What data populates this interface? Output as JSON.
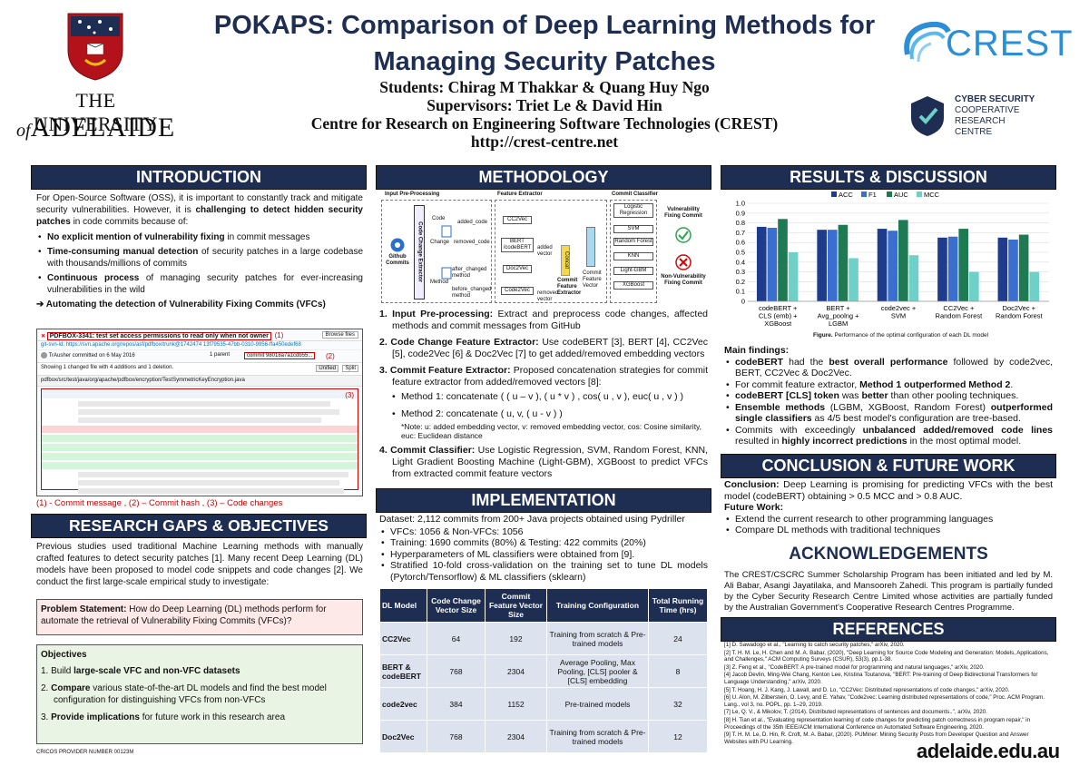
{
  "header": {
    "title_line1": "POKAPS: Comparison of Deep Learning Methods for",
    "title_line2": "Managing Security Patches",
    "students": "Students: Chirag M Thakkar & Quang Huy Ngo",
    "supervisors": "Supervisors: Triet Le & David Hin",
    "centre": "Centre for Research on Engineering Software Technologies (CREST)",
    "url": "http://crest-centre.net",
    "uni_line1": "THE UNIVERSITY",
    "uni_line2_of": "of",
    "uni_line2": "ADELAIDE",
    "crest_logo": "CREST",
    "cyber_line1": "CYBER SECURITY",
    "cyber_line2": "COOPERATIVE",
    "cyber_line3": "RESEARCH",
    "cyber_line4": "CENTRE"
  },
  "intro": {
    "title": "INTRODUCTION",
    "p1_a": "For Open-Source Software (OSS), it is important to constantly track and mitigate security vulnerabilities. However, it is ",
    "p1_b": "challenging to detect hidden security patches",
    "p1_c": " in code commits because of:",
    "bullets": [
      {
        "b": "No explicit mention of vulnerability fixing",
        "t": " in commit messages"
      },
      {
        "b": "Time-consuming manual detection",
        "t": " of security patches in a large codebase with thousands/millions of commits"
      },
      {
        "b": "Continuous process",
        "t": " of managing security patches for ever-increasing vulnerabilities in the wild"
      }
    ],
    "arrow_line": "Automating the detection of Vulnerability Fixing Commits (VFCs)",
    "commit_title": "PDFBOX-3341: test set access permissions to read only when not owner",
    "commit_caption": "(1) - Commit message , (2) – Commit hash , (3) – Code changes",
    "label1": "(1)",
    "label2": "(2)",
    "label3": "(3)",
    "browse": "Browse files",
    "author": "TrAusher committed on 6 May 2016",
    "parent": "1 parent",
    "commit_hash": "commit 98018a7a1cdb55...",
    "showing": "Showing 1 changed file with 4 additions and 1 deletion.",
    "unified": "Unified",
    "split": "Split",
    "file_path": "pdfbox/src/test/java/org/apache/pdfbox/encryption/TestSymmetricKeyEncryption.java"
  },
  "gaps": {
    "title": "RESEARCH GAPS & OBJECTIVES",
    "p1": "Previous studies used traditional Machine Learning methods with manually crafted features to detect security patches [1]. Many recent Deep Learning (DL) models have been proposed to model code snippets and code changes [2]. We conduct the first large-scale empirical study to investigate:",
    "problem_label": "Problem Statement:",
    "problem_text": " How do Deep Learning (DL) methods perform for automate the retrieval of Vulnerability Fixing Commits (VFCs)?",
    "objectives_title": "Objectives",
    "obj": [
      {
        "n": "1.",
        "a": "Build ",
        "b": "large-scale VFC and non-VFC datasets",
        "c": ""
      },
      {
        "n": "2.",
        "a": "",
        "b": "Compare",
        "c": " various state-of-the-art DL models and find the best model configuration for distinguishing VFCs from non-VFCs"
      },
      {
        "n": "3.",
        "a": "",
        "b": "Provide implications",
        "c": " for future work in this research area"
      }
    ],
    "cricos": "CRICOS PROVIDER NUMBER 00123M"
  },
  "methodology": {
    "title": "METHODOLOGY",
    "diagram": {
      "h1": "Input Pre-Processing",
      "h2": "Feature Extractor",
      "h3": "Commit Classifier",
      "github": "Github Commits",
      "extractor": "Code Change Extractor",
      "code": "Code",
      "method": "Method",
      "added_code": "added_code",
      "removed_code": "removed_code",
      "change": "Change",
      "after_method": "after_changed method",
      "before_method": "before_changed method",
      "cc2vec": "CC2Vec",
      "bert": "BERT /codeBERT",
      "doc2vec": "Doc2Vec",
      "code2vec": "Code2Vec",
      "added_vector": "added vector",
      "removed_vector": "removed vector",
      "concat": "Concat",
      "cfe": "Commit Feature Extractor",
      "cfv": "Commit Feature Vector",
      "lr": "Logistic Regression",
      "svm": "SVM",
      "rf": "Random Forest",
      "knn": "KNN",
      "lgbm": "Light-GBM",
      "xgb": "XGBoost",
      "vfc": "Vulnerability Fixing Commit",
      "nvfc": "Non-Vulnerability Fixing Commit"
    },
    "steps": [
      {
        "n": "1.",
        "b": "Input Pre-processing:",
        "t": " Extract and preprocess code changes, affected methods and commit messages from GitHub"
      },
      {
        "n": "2.",
        "b": "Code Change Feature Extractor:",
        "t": " Use codeBERT [3], BERT [4], CC2Vec [5], code2Vec [6] & Doc2Vec [7] to get added/removed embedding vectors"
      },
      {
        "n": "3.",
        "b": "Commit Feature Extractor:",
        "t": " Proposed concatenation strategies for commit feature extractor from added/removed vectors [8]:"
      },
      {
        "n": "4.",
        "b": "Commit Classifier:",
        "t": " Use Logistic Regression, SVM, Random Forest, KNN, Light Gradient Boosting Machine (Light-GBM), XGBoost to predict VFCs from extracted commit feature vectors"
      }
    ],
    "m1": "Method 1: concatenate ( ( u – v ), ( u * v ) , cos( u , v ), euc( u , v ) )",
    "m2": "Method 2: concatenate ( u, v, ( u - v ) )",
    "note": "*Note: u: added embedding vector, v: removed embedding vector, cos: Cosine similarity, euc: Euclidean distance"
  },
  "implementation": {
    "title": "IMPLEMENTATION",
    "dataset": "Dataset: 2,112 commits from 200+ Java projects obtained using Pydriller",
    "bullets": [
      "VFCs: 1056 & Non-VFCs: 1056",
      "Training: 1690 commits (80%) & Testing: 422 commits (20%)",
      "Hyperparameters of ML classifiers were obtained from [9].",
      "Stratified 10-fold cross-validation on the training set to tune DL models (Pytorch/Tensorflow) & ML classifiers (sklearn)"
    ],
    "headers": [
      "DL Model",
      "Code Change Vector Size",
      "Commit Feature Vector Size",
      "Training Configuration",
      "Total Running Time (hrs)"
    ],
    "rows": [
      [
        "CC2Vec",
        "64",
        "192",
        "Training from scratch & Pre-trained models",
        "24"
      ],
      [
        "BERT & codeBERT",
        "768",
        "2304",
        "Average Pooling, Max Pooling, [CLS] pooler & [CLS] embedding",
        "8"
      ],
      [
        "code2vec",
        "384",
        "1152",
        "Pre-trained models",
        "32"
      ],
      [
        "Doc2Vec",
        "768",
        "2304",
        "Training from scratch & Pre-trained models",
        "12"
      ]
    ]
  },
  "results": {
    "title": "RESULTS & DISCUSSION",
    "caption_b": "Figure.",
    "caption": " Performance of the optimal configuration of each DL model",
    "findings_title": "Main findings:",
    "findings": [
      {
        "a": "",
        "b": "codeBERT",
        "c": " had the ",
        "d": "best overall performance",
        "e": " followed by code2vec, BERT, CC2Vec & Doc2Vec."
      },
      {
        "a": "For commit feature extractor, ",
        "b": "Method 1 outperformed Method 2",
        "c": ".",
        "d": "",
        "e": ""
      },
      {
        "a": "",
        "b": "codeBERT [CLS] token",
        "c": " was ",
        "d": "better",
        "e": " than other pooling techniques."
      },
      {
        "a": "",
        "b": "Ensemble methods",
        "c": " (LGBM, XGBoost, Random Forest) ",
        "d": "outperformed single classifiers",
        "e": " as 4/5 best model's configuration are tree-based."
      },
      {
        "a": "Commits with exceedingly ",
        "b": "unbalanced added/removed code lines",
        "c": " resulted in ",
        "d": "highly incorrect predictions",
        "e": " in the most optimal model."
      }
    ]
  },
  "chart_data": {
    "type": "bar",
    "categories": [
      "codeBERT + CLS (emb) + XGBoost",
      "BERT + Avg_poolng + LGBM",
      "code2vec + SVM",
      "CC2Vec + Random Forest",
      "Doc2Vec + Random Forest"
    ],
    "series": [
      {
        "name": "ACC",
        "color": "#1f3b8c",
        "values": [
          0.76,
          0.73,
          0.74,
          0.65,
          0.65
        ]
      },
      {
        "name": "F1",
        "color": "#3a6fd0",
        "values": [
          0.75,
          0.73,
          0.72,
          0.66,
          0.63
        ]
      },
      {
        "name": "AUC",
        "color": "#1e7a52",
        "values": [
          0.84,
          0.78,
          0.83,
          0.74,
          0.68
        ]
      },
      {
        "name": "MCC",
        "color": "#6fd0c8",
        "values": [
          0.5,
          0.44,
          0.47,
          0.3,
          0.3
        ]
      }
    ],
    "yticks": [
      "0",
      "0.1",
      "0.2",
      "0.3",
      "0.4",
      "0.5",
      "0.6",
      "0.7",
      "0.8",
      "0.9",
      "1.0"
    ],
    "ylim": [
      0,
      1.0
    ],
    "legend": "top"
  },
  "conclusion": {
    "title": "CONCLUSION & FUTURE WORK",
    "label": "Conclusion:",
    "text": " Deep Learning is promising for predicting VFCs with the best model (codeBERT) obtaining > 0.5 MCC and > 0.8 AUC.",
    "fw_label": "Future Work:",
    "fw": [
      "Extend the current research to other programming languages",
      "Compare DL methods with traditional techniques"
    ]
  },
  "ack": {
    "title": "ACKNOWLEDGEMENTS",
    "text": "The CREST/CSCRC Summer Scholarship Program has been initiated and led by M. Ali Babar, Asangi Jayatilaka, and Mansooreh Zahedi. This program is partially funded by the Cyber Security Research Centre Limited whose activities are partially funded by the Australian Government's Cooperative Research Centres Programme."
  },
  "references": {
    "title": "REFERENCES",
    "items": [
      "[1] D. Sawadogo et al., \"Learning to catch security patches,\" arXiv, 2020.",
      "[2] T. H. M. Le, H. Chen and M. A. Babar, (2020), \"Deep Learning for Source Code Modeling and Generation: Models, Applications, and Challenges,\" ACM Computing Surveys (CSUR), 53(3), pp.1-38.",
      "[3] Z. Feng et al., \"CodeBERT: A pre-trained model for programming and natural languages,\" arXiv, 2020.",
      "[4] Jacob Devlin, Ming-Wei Chang, Kenton Lee, Kristina Toutanova, \"BERT: Pre-training of Deep Bidirectional Transformers for Language Understanding,\" arXiv, 2020.",
      "[5] T. Hoang, H. J. Kang, J. Lawall, and D. Lo, \"CC2Vec: Distributed representations of code changes,\" arXiv, 2020.",
      "[6] U. Alon, M. Zilberstein, O. Levy, and E. Yahav, \"Code2vec: Learning distributed representations of code,\" Proc. ACM Program. Lang., vol 3, no. POPL, pp. 1–29, 2019.",
      "[7] Le, Q. V., & Mikolov, T. (2014). Distributed representations of sentences and documents..\", arXiv, 2020.",
      "[8] H. Tian et al., \"Evaluating representation learning of code changes for predicting patch correctness in program repair,\" in Proceedings of the 35th IEEE/ACM International Conference on Automated Software Engineering, 2020.",
      "[9] T. H. M. Le, D. Hin, R. Croft, M. A. Babar, (2020). PUMiner: Mining Security Posts from Developer Question and Answer Websites with PU Learning."
    ]
  },
  "footer": {
    "site": "adelaide.edu.au"
  }
}
